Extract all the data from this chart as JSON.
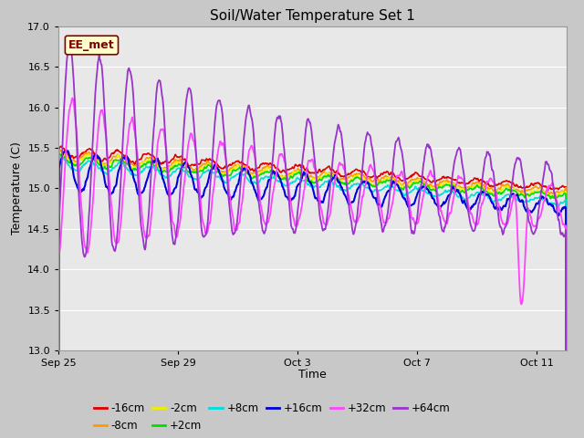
{
  "title": "Soil/Water Temperature Set 1",
  "xlabel": "Time",
  "ylabel": "Temperature (C)",
  "ylim": [
    13.0,
    17.0
  ],
  "yticks": [
    13.0,
    13.5,
    14.0,
    14.5,
    15.0,
    15.5,
    16.0,
    16.5,
    17.0
  ],
  "fig_bg_color": "#c8c8c8",
  "plot_bg_color": "#e8e8e8",
  "annotation_text": "EE_met",
  "annotation_box_color": "#ffffcc",
  "annotation_border_color": "#800000",
  "series": [
    {
      "label": "-16cm",
      "color": "#dd0000"
    },
    {
      "label": "-8cm",
      "color": "#ff9900"
    },
    {
      "label": "-2cm",
      "color": "#eeee00"
    },
    {
      "label": "+2cm",
      "color": "#00dd00"
    },
    {
      "label": "+8cm",
      "color": "#00dddd"
    },
    {
      "label": "+16cm",
      "color": "#0000dd"
    },
    {
      "label": "+32cm",
      "color": "#ff44ff"
    },
    {
      "label": "+64cm",
      "color": "#9933cc"
    }
  ],
  "x_tick_labels": [
    "Sep 25",
    "Sep 29",
    "Oct 3",
    "Oct 7",
    "Oct 11"
  ],
  "x_tick_positions": [
    0,
    4,
    8,
    12,
    16
  ],
  "n_points": 800,
  "total_days": 17
}
